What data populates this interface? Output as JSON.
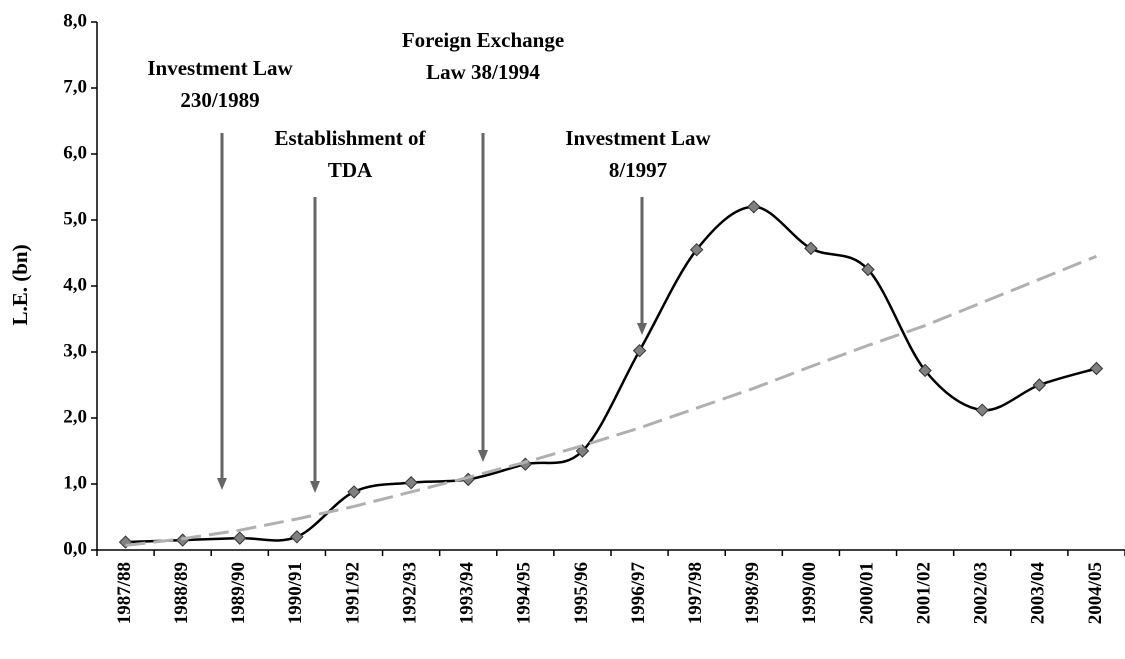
{
  "chart_data": {
    "type": "line",
    "y_label": "L.E. (bn)",
    "categories": [
      "1987/88",
      "1988/89",
      "1989/90",
      "1990/91",
      "1991/92",
      "1992/93",
      "1993/94",
      "1994/95",
      "1995/96",
      "1996/97",
      "1997/98",
      "1998/99",
      "1999/00",
      "2000/01",
      "2001/02",
      "2002/03",
      "2003/04",
      "2004/05"
    ],
    "series": [
      {
        "color": "#000000",
        "marker_color": "#808080",
        "smooth": true,
        "values": [
          0.12,
          0.15,
          0.18,
          0.2,
          0.88,
          1.02,
          1.07,
          1.3,
          1.5,
          3.02,
          4.55,
          5.2,
          4.57,
          4.25,
          2.72,
          2.12,
          2.5,
          2.75
        ]
      },
      {
        "color": "#b0b0b0",
        "dashed": true,
        "values": [
          0.07,
          0.17,
          0.3,
          0.47,
          0.66,
          0.88,
          1.1,
          1.33,
          1.58,
          1.85,
          2.15,
          2.45,
          2.78,
          3.1,
          3.4,
          3.75,
          4.1,
          4.45
        ]
      }
    ],
    "ylim": [
      0,
      8
    ],
    "yticks": [
      {
        "value": 0,
        "label": "0,0"
      },
      {
        "value": 1,
        "label": "1,0"
      },
      {
        "value": 2,
        "label": "2,0"
      },
      {
        "value": 3,
        "label": "3,0"
      },
      {
        "value": 4,
        "label": "4,0"
      },
      {
        "value": 5,
        "label": "5,0"
      },
      {
        "value": 6,
        "label": "6,0"
      },
      {
        "value": 7,
        "label": "7,0"
      },
      {
        "value": 8,
        "label": "8,0"
      }
    ],
    "grid": false,
    "annotations": [
      {
        "lines": [
          "Investment Law",
          "230/1989"
        ]
      },
      {
        "lines": [
          "Establishment of",
          "TDA"
        ]
      },
      {
        "lines": [
          "Foreign Exchange",
          "Law 38/1994"
        ]
      },
      {
        "lines": [
          "Investment Law",
          "8/1997"
        ]
      }
    ]
  }
}
